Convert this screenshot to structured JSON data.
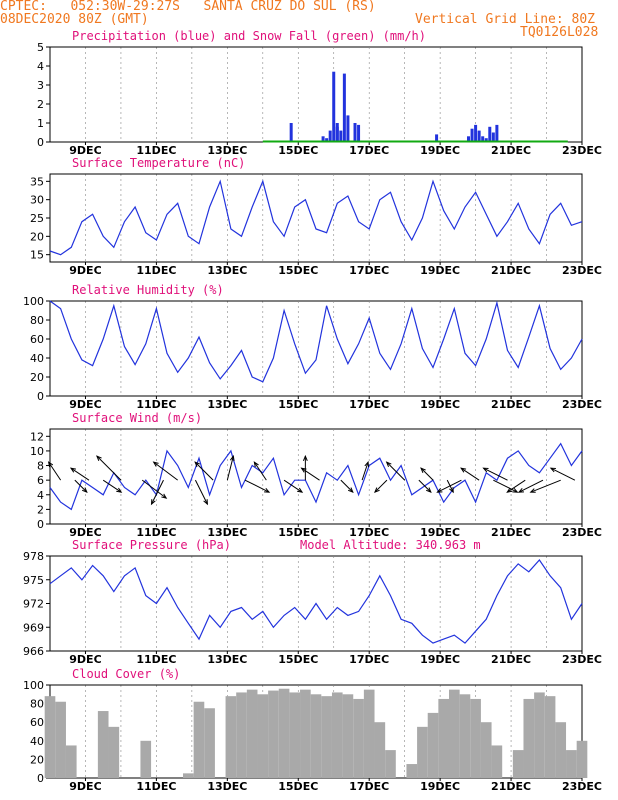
{
  "header": {
    "line1": "CPTEC:   052:30W-29:27S   SANTA CRUZ DO SUL (RS)",
    "line2_left": "08DEC2020 80Z (GMT)",
    "line2_right": "Vertical Grid Line: 80Z",
    "line3_right": "TQ0126L028"
  },
  "colors": {
    "accent": "#f07820",
    "title": "#e0107a",
    "series": "#2233dd",
    "snow": "#11aa11",
    "cloud": "#a9a9a9"
  },
  "x_ticks": [
    "9DEC",
    "11DEC",
    "13DEC",
    "15DEC",
    "17DEC",
    "19DEC",
    "21DEC",
    "23DEC"
  ],
  "chart_data": [
    {
      "type": "bar",
      "title": "Precipitation (blue) and Snow Fall (green) (mm/h)",
      "ylim": [
        0,
        5
      ],
      "yticks": [
        "5",
        "4",
        "3",
        "2",
        "1",
        "0"
      ],
      "series": [
        {
          "name": "Precipitation",
          "x": [
            14.8,
            15.7,
            15.8,
            15.9,
            16.0,
            16.1,
            16.1,
            16.2,
            16.3,
            16.4,
            16.6,
            16.7,
            18.9,
            19.8,
            19.9,
            20.0,
            20.1,
            20.2,
            20.3,
            20.4,
            20.5,
            20.6
          ],
          "values": [
            1.0,
            0.3,
            0.2,
            0.6,
            3.7,
            1.0,
            0.8,
            0.6,
            3.6,
            1.4,
            1.0,
            0.9,
            0.4,
            0.3,
            0.7,
            0.9,
            0.6,
            0.3,
            0.2,
            0.8,
            0.5,
            0.9
          ]
        },
        {
          "name": "Snow Fall",
          "x": [],
          "values": []
        }
      ]
    },
    {
      "type": "line",
      "title": "Surface Temperature (nC)",
      "ylim": [
        13,
        37
      ],
      "yticks": [
        "35",
        "30",
        "25",
        "20",
        "15"
      ],
      "x": [
        8.0,
        8.3,
        8.6,
        8.9,
        9.2,
        9.5,
        9.8,
        10.1,
        10.4,
        10.7,
        11.0,
        11.3,
        11.6,
        11.9,
        12.2,
        12.5,
        12.8,
        13.1,
        13.4,
        13.7,
        14.0,
        14.3,
        14.6,
        14.9,
        15.2,
        15.5,
        15.8,
        16.1,
        16.4,
        16.7,
        17.0,
        17.3,
        17.6,
        17.9,
        18.2,
        18.5,
        18.8,
        19.1,
        19.4,
        19.7,
        20.0,
        20.3,
        20.6,
        20.9,
        21.2,
        21.5,
        21.8,
        22.1,
        22.4,
        22.7,
        23.0
      ],
      "values": [
        16,
        15,
        17,
        24,
        26,
        20,
        17,
        24,
        28,
        21,
        19,
        26,
        29,
        20,
        18,
        28,
        35,
        22,
        20,
        28,
        35,
        24,
        20,
        28,
        30,
        22,
        21,
        29,
        31,
        24,
        22,
        30,
        32,
        24,
        19,
        25,
        35,
        27,
        22,
        28,
        32,
        26,
        20,
        24,
        29,
        22,
        18,
        26,
        29,
        23,
        24
      ]
    },
    {
      "type": "line",
      "title": "Relative Humidity (%)",
      "ylim": [
        0,
        100
      ],
      "yticks": [
        "100",
        "80",
        "60",
        "40",
        "20",
        "0"
      ],
      "x": [
        8.0,
        8.3,
        8.6,
        8.9,
        9.2,
        9.5,
        9.8,
        10.1,
        10.4,
        10.7,
        11.0,
        11.3,
        11.6,
        11.9,
        12.2,
        12.5,
        12.8,
        13.1,
        13.4,
        13.7,
        14.0,
        14.3,
        14.6,
        14.9,
        15.2,
        15.5,
        15.8,
        16.1,
        16.4,
        16.7,
        17.0,
        17.3,
        17.6,
        17.9,
        18.2,
        18.5,
        18.8,
        19.1,
        19.4,
        19.7,
        20.0,
        20.3,
        20.6,
        20.9,
        21.2,
        21.5,
        21.8,
        22.1,
        22.4,
        22.7,
        23.0
      ],
      "values": [
        100,
        92,
        60,
        38,
        32,
        60,
        95,
        52,
        33,
        55,
        92,
        45,
        25,
        40,
        62,
        35,
        18,
        32,
        48,
        20,
        15,
        40,
        90,
        55,
        24,
        38,
        95,
        60,
        34,
        55,
        82,
        45,
        28,
        55,
        92,
        50,
        30,
        60,
        92,
        45,
        32,
        60,
        98,
        48,
        30,
        62,
        95,
        50,
        28,
        40,
        60
      ]
    },
    {
      "type": "line",
      "title": "Surface Wind (m/s)",
      "ylim": [
        0,
        13
      ],
      "yticks": [
        "12",
        "10",
        "8",
        "6",
        "4",
        "2",
        "0"
      ],
      "x": [
        8.0,
        8.3,
        8.6,
        8.9,
        9.2,
        9.5,
        9.8,
        10.1,
        10.4,
        10.7,
        11.0,
        11.3,
        11.6,
        11.9,
        12.2,
        12.5,
        12.8,
        13.1,
        13.4,
        13.7,
        14.0,
        14.3,
        14.6,
        14.9,
        15.2,
        15.5,
        15.8,
        16.1,
        16.4,
        16.7,
        17.0,
        17.3,
        17.6,
        17.9,
        18.2,
        18.5,
        18.8,
        19.1,
        19.4,
        19.7,
        20.0,
        20.3,
        20.6,
        20.9,
        21.2,
        21.5,
        21.8,
        22.1,
        22.4,
        22.7,
        23.0
      ],
      "values": [
        5,
        3,
        2,
        6,
        5,
        4,
        7,
        5,
        4,
        6,
        4,
        10,
        8,
        5,
        9,
        4,
        8,
        10,
        5,
        8,
        7,
        9,
        4,
        6,
        6,
        3,
        7,
        6,
        8,
        4,
        8,
        9,
        6,
        8,
        4,
        5,
        6,
        3,
        5,
        6,
        3,
        7,
        6,
        9,
        10,
        8,
        7,
        9,
        11,
        8,
        10
      ]
    },
    {
      "type": "line",
      "title": "Surface Pressure (hPa)",
      "annotation": "Model Altitude: 340.963 m",
      "ylim": [
        966,
        978
      ],
      "yticks": [
        "978",
        "975",
        "972",
        "969",
        "966"
      ],
      "x": [
        8.0,
        8.3,
        8.6,
        8.9,
        9.2,
        9.5,
        9.8,
        10.1,
        10.4,
        10.7,
        11.0,
        11.3,
        11.6,
        11.9,
        12.2,
        12.5,
        12.8,
        13.1,
        13.4,
        13.7,
        14.0,
        14.3,
        14.6,
        14.9,
        15.2,
        15.5,
        15.8,
        16.1,
        16.4,
        16.7,
        17.0,
        17.3,
        17.6,
        17.9,
        18.2,
        18.5,
        18.8,
        19.1,
        19.4,
        19.7,
        20.0,
        20.3,
        20.6,
        20.9,
        21.2,
        21.5,
        21.8,
        22.1,
        22.4,
        22.7,
        23.0
      ],
      "values": [
        974.5,
        975.5,
        976.5,
        975,
        976.8,
        975.5,
        973.5,
        975.5,
        976.5,
        973,
        972,
        974,
        971.5,
        969.5,
        967.5,
        970.5,
        969,
        971,
        971.5,
        970,
        971,
        969,
        970.5,
        971.5,
        970,
        972,
        970,
        971.5,
        970.5,
        971,
        973,
        975.5,
        973,
        970,
        969.5,
        968,
        967,
        967.5,
        968,
        967,
        968.5,
        970,
        973,
        975.5,
        977,
        976,
        977.5,
        975.5,
        974,
        970,
        972
      ]
    },
    {
      "type": "bar",
      "title": "Cloud Cover (%)",
      "ylim": [
        0,
        100
      ],
      "yticks": [
        "100",
        "80",
        "60",
        "40",
        "20",
        "0"
      ],
      "x": [
        8.0,
        8.3,
        8.6,
        8.9,
        9.2,
        9.5,
        9.8,
        10.1,
        10.4,
        10.7,
        11.0,
        11.3,
        11.6,
        11.9,
        12.2,
        12.5,
        12.8,
        13.1,
        13.4,
        13.7,
        14.0,
        14.3,
        14.6,
        14.9,
        15.2,
        15.5,
        15.8,
        16.1,
        16.4,
        16.7,
        17.0,
        17.3,
        17.6,
        17.9,
        18.2,
        18.5,
        18.8,
        19.1,
        19.4,
        19.7,
        20.0,
        20.3,
        20.6,
        20.9,
        21.2,
        21.5,
        21.8,
        22.1,
        22.4,
        22.7,
        23.0
      ],
      "values": [
        88,
        82,
        35,
        0,
        0,
        72,
        55,
        0,
        0,
        40,
        0,
        0,
        0,
        5,
        82,
        75,
        0,
        88,
        92,
        95,
        90,
        94,
        96,
        92,
        95,
        90,
        88,
        92,
        90,
        85,
        95,
        60,
        30,
        0,
        15,
        55,
        70,
        85,
        95,
        90,
        85,
        60,
        35,
        0,
        30,
        85,
        92,
        88,
        60,
        30,
        40
      ]
    }
  ],
  "wind_vectors": {
    "x": [
      8.3,
      8.7,
      9.1,
      9.5,
      10.0,
      10.6,
      11.2,
      11.6,
      12.1,
      12.6,
      13.0,
      13.5,
      14.1,
      14.6,
      15.2,
      15.6,
      16.2,
      16.8,
      17.5,
      18.0,
      18.4,
      18.8,
      19.2,
      19.6,
      20.1,
      20.5,
      20.9,
      21.4,
      21.9,
      22.4,
      22.8
    ],
    "u": [
      -1,
      1,
      -1.5,
      1.5,
      -2,
      2,
      -1,
      -2,
      1,
      -1.5,
      0.5,
      2,
      -1,
      1.5,
      0,
      -1.5,
      1,
      0.5,
      -1,
      -1.5,
      1,
      -1,
      0.5,
      -2,
      -1.5,
      2,
      -2,
      -1.5,
      -2,
      -2.5,
      -2
    ],
    "v": [
      1.5,
      -1,
      1,
      -1,
      2,
      -1.5,
      -2,
      1.5,
      -2,
      1.5,
      2,
      -1,
      1.5,
      -1,
      2,
      1,
      -1,
      1.5,
      -1,
      1.5,
      -1,
      1,
      -1,
      -1,
      1,
      -1,
      1,
      -1,
      -1,
      -1,
      1
    ]
  }
}
